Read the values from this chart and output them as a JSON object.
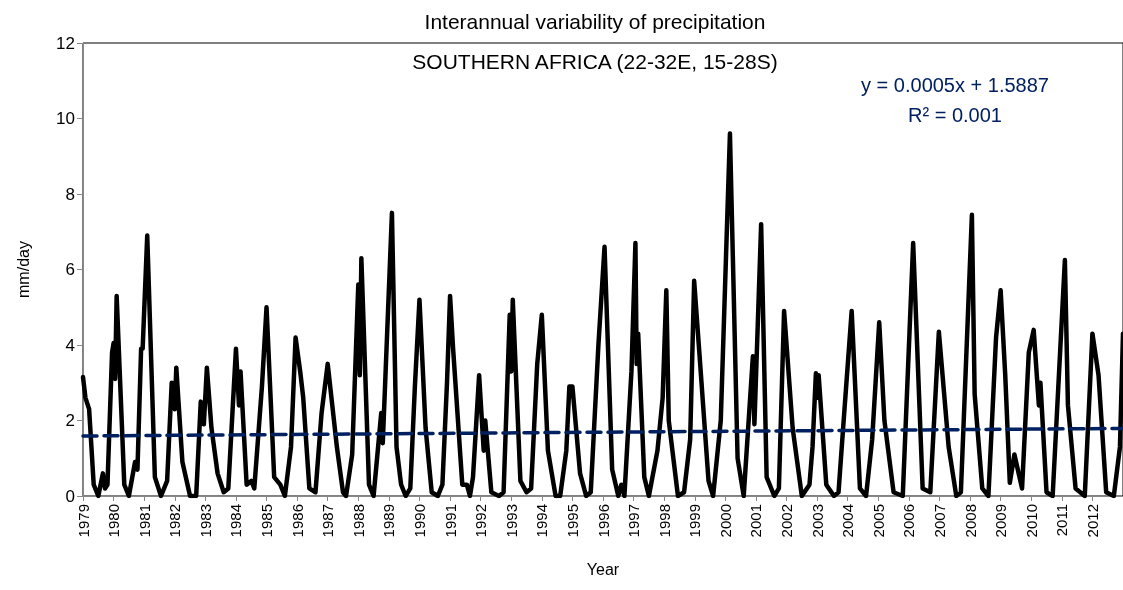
{
  "chart_data": {
    "type": "line",
    "title": "Interannual variability of precipitation",
    "subtitle": "SOUTHERN AFRICA (22-32E, 15-28S)",
    "xlabel": "Year",
    "ylabel": "mm/day",
    "xlim": [
      1979,
      2013
    ],
    "xticks": [
      1979,
      1980,
      1981,
      1982,
      1983,
      1984,
      1985,
      1986,
      1987,
      1988,
      1989,
      1990,
      1991,
      1992,
      1993,
      1994,
      1995,
      1996,
      1997,
      1998,
      1999,
      2000,
      2001,
      2002,
      2003,
      2004,
      2005,
      2006,
      2007,
      2008,
      2009,
      2010,
      2011,
      2012
    ],
    "ylim": [
      0,
      12
    ],
    "yticks": [
      0,
      2,
      4,
      6,
      8,
      10,
      12
    ],
    "grid": false,
    "marker": "none",
    "annotations": [
      "y = 0.0005x + 1.5887",
      "R² = 0.001"
    ],
    "series": [
      {
        "color": "#000000",
        "line_style": "solid",
        "x": [
          1979.0,
          1979.08,
          1979.2,
          1979.35,
          1979.5,
          1979.65,
          1979.72,
          1979.8,
          1979.95,
          1980.0,
          1980.05,
          1980.1,
          1980.35,
          1980.5,
          1980.7,
          1980.78,
          1980.9,
          1980.95,
          1981.1,
          1981.35,
          1981.55,
          1981.75,
          1981.9,
          1982.0,
          1982.05,
          1982.25,
          1982.5,
          1982.7,
          1982.85,
          1982.95,
          1983.05,
          1983.2,
          1983.4,
          1983.6,
          1983.75,
          1984.0,
          1984.1,
          1984.15,
          1984.35,
          1984.5,
          1984.6,
          1984.85,
          1985.0,
          1985.25,
          1985.45,
          1985.6,
          1985.8,
          1985.95,
          1986.1,
          1986.2,
          1986.4,
          1986.6,
          1986.8,
          1987.0,
          1987.3,
          1987.5,
          1987.6,
          1987.8,
          1988.0,
          1988.05,
          1988.1,
          1988.35,
          1988.5,
          1988.75,
          1988.8,
          1989.1,
          1989.25,
          1989.4,
          1989.55,
          1989.7,
          1989.85,
          1990.0,
          1990.2,
          1990.4,
          1990.6,
          1990.75,
          1990.9,
          1991.0,
          1991.1,
          1991.4,
          1991.55,
          1991.65,
          1991.75,
          1991.95,
          1992.1,
          1992.15,
          1992.35,
          1992.6,
          1992.75,
          1992.95,
          1993.0,
          1993.05,
          1993.3,
          1993.5,
          1993.65,
          1993.85,
          1994.0,
          1994.2,
          1994.45,
          1994.6,
          1994.8,
          1994.9,
          1995.0,
          1995.25,
          1995.45,
          1995.6,
          1995.85,
          1996.05,
          1996.3,
          1996.5,
          1996.6,
          1996.7,
          1996.93,
          1997.06,
          1997.1,
          1997.15,
          1997.35,
          1997.5,
          1997.78,
          1997.95,
          1998.07,
          1998.15,
          1998.45,
          1998.65,
          1998.85,
          1998.98,
          1999.15,
          1999.45,
          1999.6,
          1999.85,
          2000.15,
          2000.4,
          2000.6,
          2000.9,
          2000.95,
          2001.17,
          2001.35,
          2001.6,
          2001.75,
          2001.92,
          2002.2,
          2002.35,
          2002.5,
          2002.75,
          2002.85,
          2002.96,
          2003.0,
          2003.05,
          2003.3,
          2003.55,
          2003.7,
          2003.85,
          2004.13,
          2004.4,
          2004.6,
          2004.8,
          2005.03,
          2005.2,
          2005.5,
          2005.8,
          2006.14,
          2006.45,
          2006.7,
          2006.98,
          2007.3,
          2007.55,
          2007.7,
          2008.06,
          2008.15,
          2008.4,
          2008.6,
          2008.85,
          2009.0,
          2009.15,
          2009.3,
          2009.45,
          2009.7,
          2009.92,
          2010.08,
          2010.25,
          2010.3,
          2010.5,
          2010.7,
          2011.1,
          2011.2,
          2011.45,
          2011.75,
          2012.0,
          2012.2,
          2012.45,
          2012.7,
          2012.9,
          2013.0
        ],
        "values": [
          3.15,
          2.6,
          2.3,
          0.3,
          0.0,
          0.6,
          0.2,
          0.3,
          3.8,
          4.05,
          3.1,
          5.3,
          0.3,
          0.0,
          0.9,
          0.7,
          3.9,
          3.9,
          6.9,
          0.5,
          0.0,
          0.4,
          3.0,
          2.3,
          3.4,
          0.9,
          0.0,
          0.0,
          2.5,
          1.9,
          3.4,
          1.8,
          0.6,
          0.1,
          0.2,
          3.9,
          2.4,
          3.3,
          0.3,
          0.4,
          0.2,
          2.9,
          5.0,
          0.5,
          0.3,
          0.0,
          1.3,
          4.2,
          3.3,
          2.6,
          0.2,
          0.1,
          2.2,
          3.5,
          1.3,
          0.1,
          0.0,
          1.1,
          5.6,
          3.2,
          6.3,
          0.3,
          0.0,
          2.2,
          1.4,
          7.5,
          1.3,
          0.3,
          0.0,
          0.2,
          2.9,
          5.2,
          1.8,
          0.1,
          0.0,
          0.3,
          3.0,
          5.3,
          3.9,
          0.3,
          0.3,
          0.0,
          0.5,
          3.2,
          1.2,
          2.0,
          0.1,
          0.0,
          0.1,
          4.8,
          3.3,
          5.2,
          0.4,
          0.1,
          0.2,
          3.5,
          4.8,
          1.2,
          0.0,
          0.0,
          1.2,
          2.9,
          2.9,
          0.6,
          0.0,
          0.1,
          4.0,
          6.6,
          0.7,
          0.0,
          0.3,
          0.0,
          3.3,
          6.7,
          3.5,
          4.3,
          0.5,
          0.0,
          1.2,
          2.6,
          5.45,
          2.0,
          0.0,
          0.1,
          1.5,
          5.7,
          3.8,
          0.4,
          0.0,
          2.0,
          9.6,
          1.0,
          0.0,
          3.7,
          1.9,
          7.2,
          0.5,
          0.0,
          0.2,
          4.9,
          1.8,
          0.9,
          0.0,
          0.3,
          1.3,
          3.25,
          2.6,
          3.2,
          0.3,
          0.0,
          0.1,
          1.8,
          4.9,
          0.2,
          0.0,
          1.5,
          4.6,
          2.0,
          0.1,
          0.0,
          6.7,
          0.2,
          0.1,
          4.35,
          1.3,
          0.0,
          0.1,
          7.45,
          2.7,
          0.2,
          0.0,
          4.2,
          5.45,
          3.2,
          0.35,
          1.1,
          0.2,
          3.8,
          4.4,
          2.4,
          3.0,
          0.1,
          0.0,
          6.25,
          2.4,
          0.2,
          0.0,
          4.3,
          3.2,
          0.1,
          0.0,
          1.3,
          4.3
        ]
      },
      {
        "color": "#002060",
        "line_style": "dashed",
        "x": [
          1979,
          2013
        ],
        "values": [
          1.59,
          1.79
        ]
      }
    ]
  }
}
